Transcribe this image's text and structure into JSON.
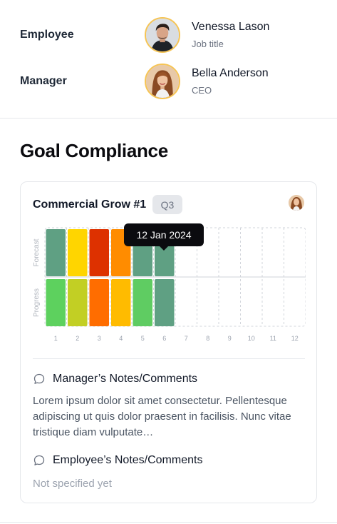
{
  "people": [
    {
      "role": "Employee",
      "name": "Venessa Lason",
      "subtitle": "Job title",
      "avatar": "man-avatar"
    },
    {
      "role": "Manager",
      "name": "Bella Anderson",
      "subtitle": "CEO",
      "avatar": "woman-avatar"
    }
  ],
  "section_title": "Goal Compliance",
  "card": {
    "title": "Commercial Grow #1",
    "badge": "Q3",
    "owner_avatar": "woman-avatar",
    "tooltip": "12 Jan 2024",
    "notes": [
      {
        "heading": "Manager’s Notes/Comments",
        "icon": "comment-icon",
        "text": "Lorem ipsum dolor sit amet consectetur. Pellentesque adipiscing ut quis dolor praesent in facilisis. Nunc vitae tristique diam vulputate…",
        "placeholder": false
      },
      {
        "heading": "Employee’s Notes/Comments",
        "icon": "comment-icon",
        "text": "Not specified yet",
        "placeholder": true
      }
    ]
  },
  "chart_data": {
    "type": "heatmap",
    "rows": [
      "Forecast",
      "Progress"
    ],
    "columns": [
      "1",
      "2",
      "3",
      "4",
      "5",
      "6",
      "7",
      "8",
      "9",
      "10",
      "11",
      "12"
    ],
    "filled_columns": 6,
    "highlighted_column": "6",
    "cells": {
      "Forecast": [
        "#5fa083",
        "#ffd500",
        "#dd3100",
        "#ff8c00",
        "#5fa083",
        "#5fa083",
        null,
        null,
        null,
        null,
        null,
        null
      ],
      "Progress": [
        "#5dd15e",
        "#c2cf24",
        "#ff6d00",
        "#ffbb00",
        "#5fcc62",
        "#5fa083",
        null,
        null,
        null,
        null,
        null,
        null
      ]
    },
    "grid": "dashed"
  }
}
